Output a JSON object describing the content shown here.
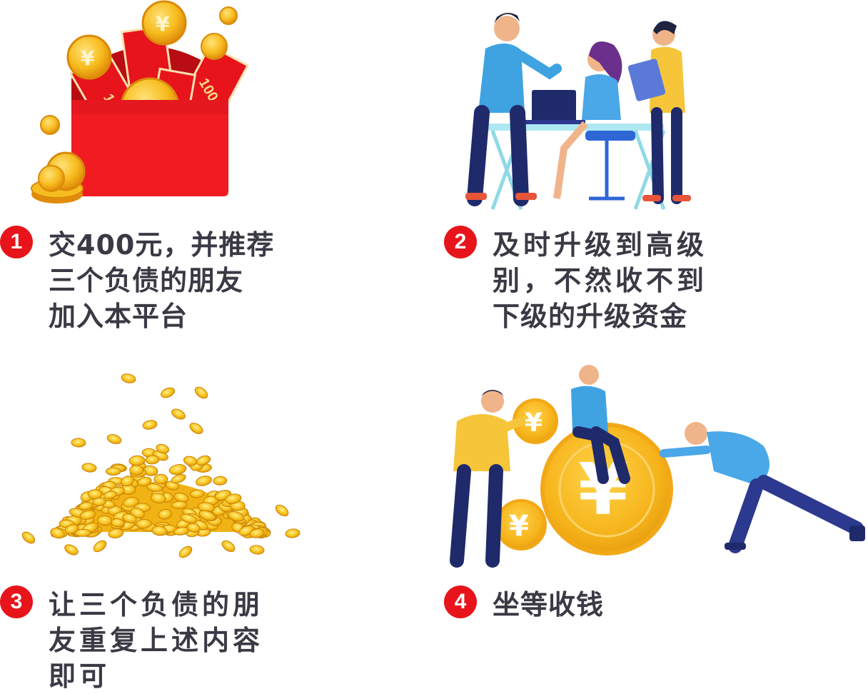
{
  "steps": [
    {
      "number": "1",
      "lines": [
        "交400元，并推荐",
        "三个负债的朋友",
        "加入本平台"
      ]
    },
    {
      "number": "2",
      "lines": [
        "及时升级到高级",
        "别，不然收不到",
        "下级的升级资金"
      ]
    },
    {
      "number": "3",
      "lines": [
        "让三个负债的朋",
        "友重复上述内容",
        "即可"
      ]
    },
    {
      "number": "4",
      "lines": [
        "坐等收钱"
      ]
    }
  ],
  "illustrations": {
    "red_envelope": {
      "banknote_label": "100",
      "coin_symbol": "¥"
    },
    "office_meeting": {},
    "coin_pile": {},
    "pushing_coin": {
      "coin_symbol": "¥"
    }
  },
  "colors": {
    "badge": "#e8141b",
    "text": "#3a3a45",
    "envelope": "#e8141b",
    "coin": "#f5b91b",
    "coin_dark": "#e79a0d"
  }
}
